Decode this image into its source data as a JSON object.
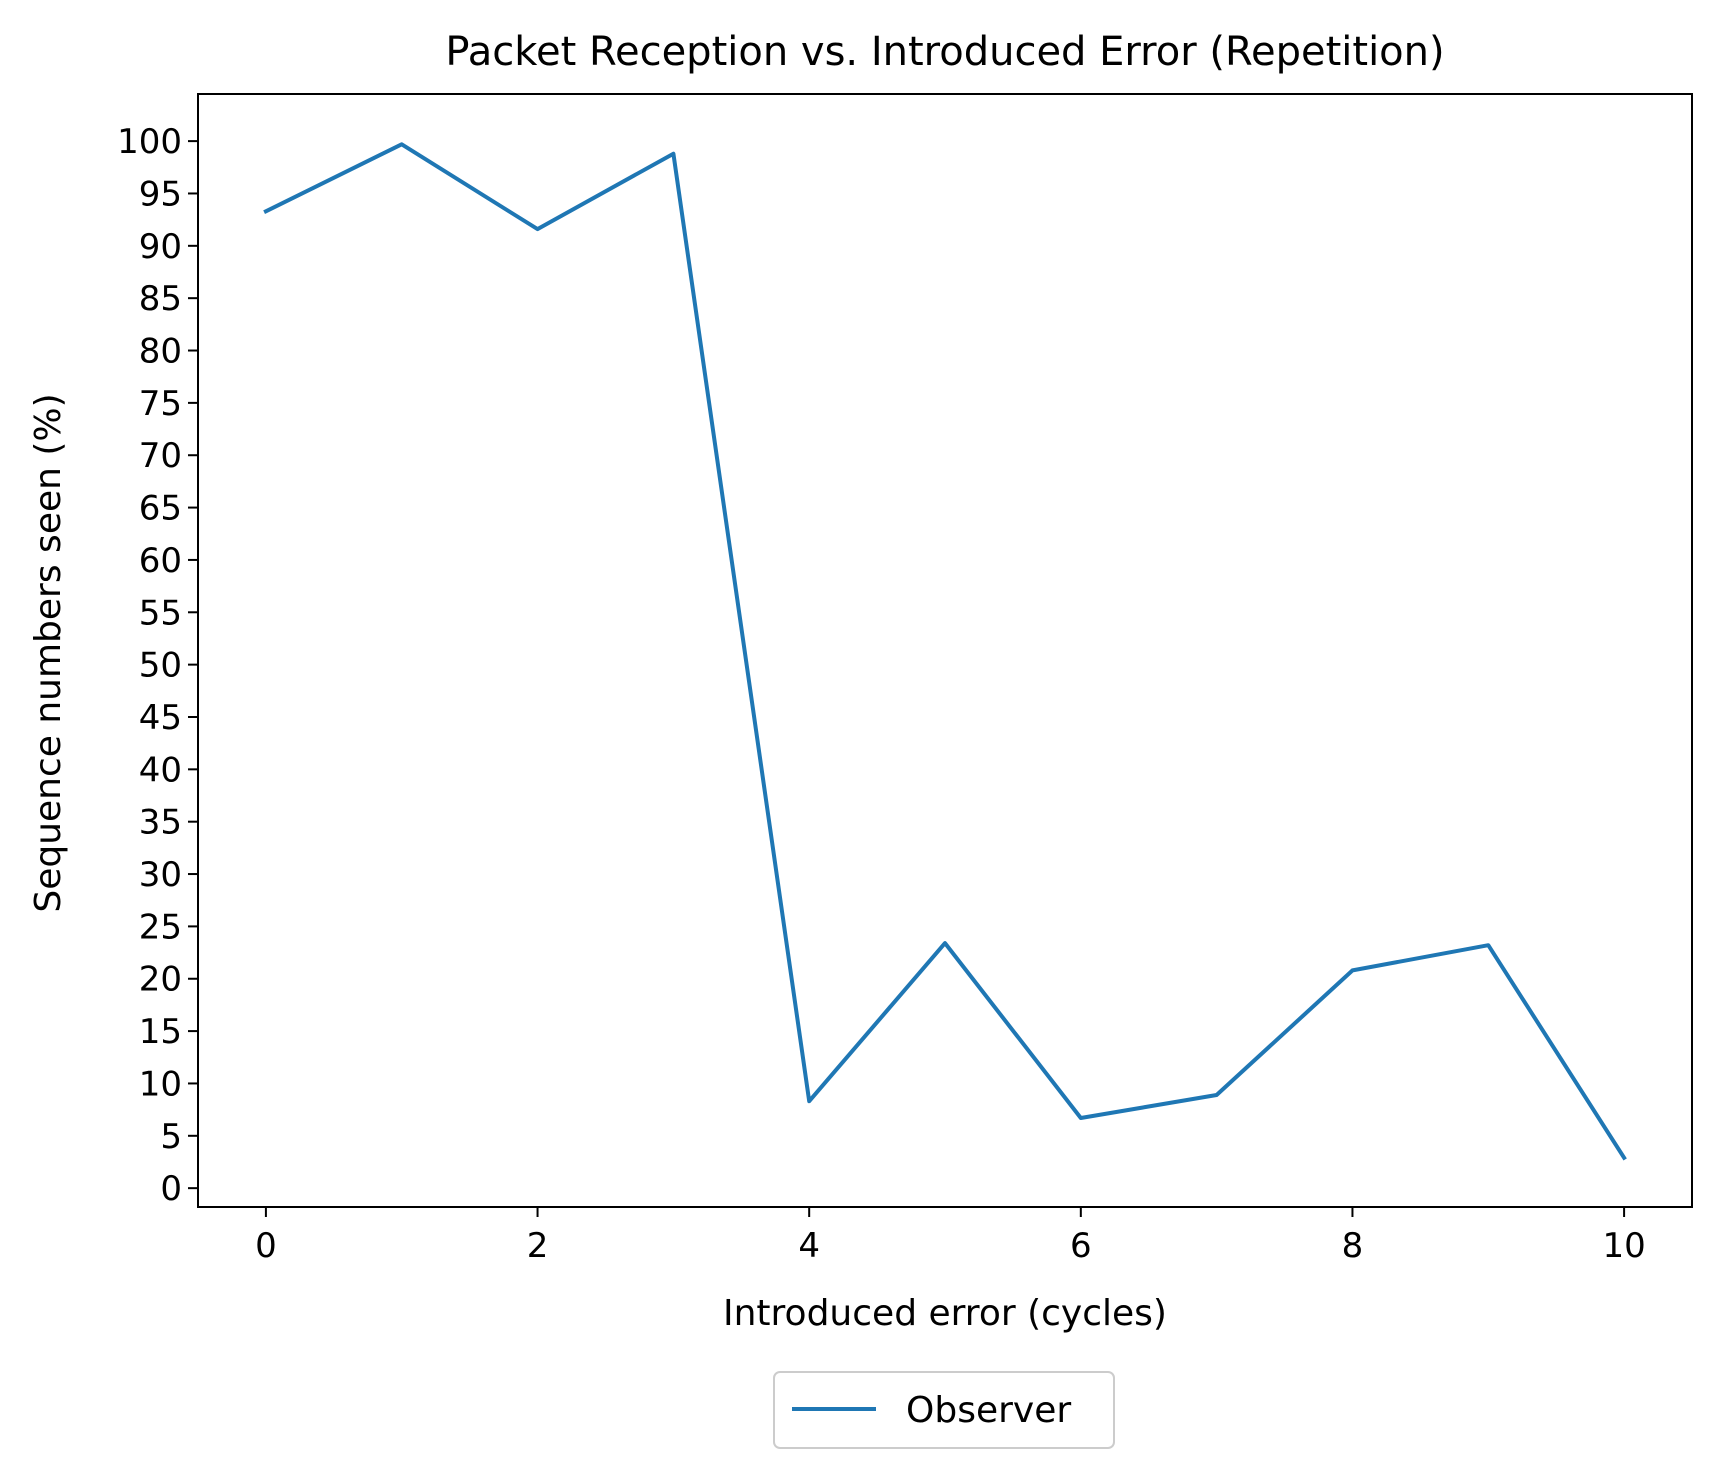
{
  "chart_data": {
    "type": "line",
    "title": "Packet Reception vs. Introduced Error (Repetition)",
    "xlabel": "Introduced error (cycles)",
    "ylabel": "Sequence numbers seen (%)",
    "x": [
      0,
      1,
      2,
      3,
      4,
      5,
      6,
      7,
      8,
      9,
      10
    ],
    "series": [
      {
        "name": "Observer",
        "color": "#1f77b4",
        "values": [
          93.3,
          99.7,
          91.6,
          98.8,
          8.3,
          23.4,
          6.7,
          8.9,
          20.8,
          23.2,
          2.9
        ]
      }
    ],
    "xlim": [
      -0.5,
      10.5
    ],
    "ylim": [
      -1.8,
      104.5
    ],
    "xticks": [
      0,
      2,
      4,
      6,
      8,
      10
    ],
    "yticks": [
      0,
      5,
      10,
      15,
      20,
      25,
      30,
      35,
      40,
      45,
      50,
      55,
      60,
      65,
      70,
      75,
      80,
      85,
      90,
      95,
      100
    ],
    "grid": false,
    "legend_position": "below-center"
  }
}
